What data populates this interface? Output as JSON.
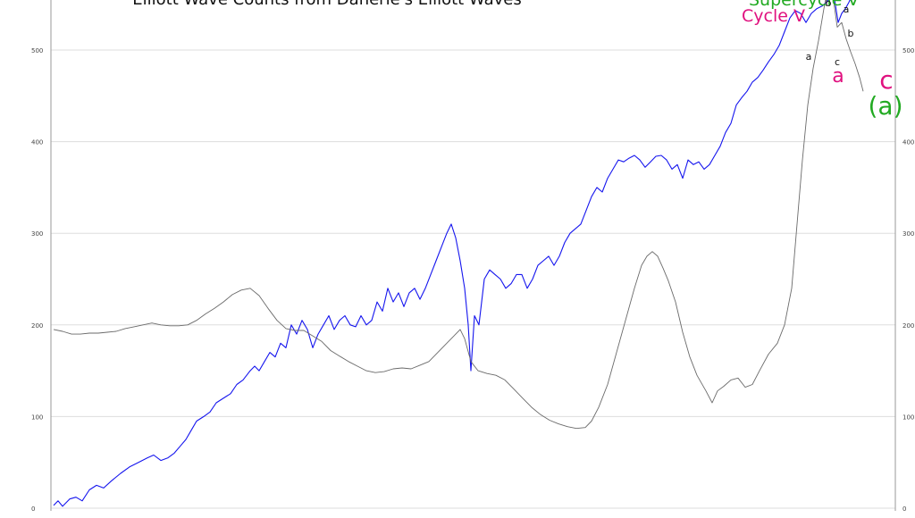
{
  "chart_data": {
    "type": "line",
    "title": "Elliott Wave Counts from Danerie's Elliott Waves",
    "ylim": [
      0,
      550
    ],
    "yticks": [
      0,
      100,
      200,
      300,
      400,
      500
    ],
    "grid": true,
    "colors": {
      "price": "#1515ee",
      "overlay": "#6a6a6a",
      "supercycle": "#22aa22",
      "cycle": "#e0117f",
      "grid": "#dddddd"
    },
    "series": [
      {
        "color_key": "price",
        "points": [
          [
            60,
            3
          ],
          [
            65,
            8
          ],
          [
            70,
            2
          ],
          [
            78,
            10
          ],
          [
            85,
            12
          ],
          [
            92,
            8
          ],
          [
            100,
            20
          ],
          [
            108,
            25
          ],
          [
            116,
            22
          ],
          [
            125,
            30
          ],
          [
            135,
            38
          ],
          [
            145,
            45
          ],
          [
            155,
            50
          ],
          [
            165,
            55
          ],
          [
            172,
            58
          ],
          [
            180,
            52
          ],
          [
            188,
            55
          ],
          [
            195,
            60
          ],
          [
            202,
            68
          ],
          [
            208,
            75
          ],
          [
            214,
            85
          ],
          [
            220,
            95
          ],
          [
            228,
            100
          ],
          [
            235,
            105
          ],
          [
            242,
            115
          ],
          [
            250,
            120
          ],
          [
            258,
            125
          ],
          [
            265,
            135
          ],
          [
            272,
            140
          ],
          [
            280,
            150
          ],
          [
            285,
            155
          ],
          [
            290,
            150
          ],
          [
            296,
            160
          ],
          [
            302,
            170
          ],
          [
            308,
            165
          ],
          [
            314,
            180
          ],
          [
            320,
            175
          ],
          [
            326,
            200
          ],
          [
            332,
            190
          ],
          [
            338,
            205
          ],
          [
            344,
            195
          ],
          [
            350,
            175
          ],
          [
            356,
            190
          ],
          [
            362,
            200
          ],
          [
            368,
            210
          ],
          [
            374,
            195
          ],
          [
            380,
            205
          ],
          [
            386,
            210
          ],
          [
            392,
            200
          ],
          [
            398,
            198
          ],
          [
            404,
            210
          ],
          [
            410,
            200
          ],
          [
            416,
            205
          ],
          [
            422,
            225
          ],
          [
            428,
            215
          ],
          [
            434,
            240
          ],
          [
            440,
            225
          ],
          [
            446,
            235
          ],
          [
            452,
            220
          ],
          [
            458,
            235
          ],
          [
            464,
            240
          ],
          [
            470,
            228
          ],
          [
            476,
            240
          ],
          [
            482,
            255
          ],
          [
            488,
            270
          ],
          [
            494,
            285
          ],
          [
            500,
            300
          ],
          [
            505,
            310
          ],
          [
            510,
            295
          ],
          [
            515,
            270
          ],
          [
            520,
            240
          ],
          [
            524,
            200
          ],
          [
            527,
            150
          ],
          [
            531,
            210
          ],
          [
            536,
            200
          ],
          [
            542,
            250
          ],
          [
            548,
            260
          ],
          [
            554,
            255
          ],
          [
            560,
            250
          ],
          [
            566,
            240
          ],
          [
            572,
            245
          ],
          [
            578,
            255
          ],
          [
            584,
            255
          ],
          [
            590,
            240
          ],
          [
            596,
            250
          ],
          [
            602,
            265
          ],
          [
            608,
            270
          ],
          [
            614,
            275
          ],
          [
            620,
            265
          ],
          [
            626,
            275
          ],
          [
            632,
            290
          ],
          [
            638,
            300
          ],
          [
            644,
            305
          ],
          [
            650,
            310
          ],
          [
            656,
            325
          ],
          [
            662,
            340
          ],
          [
            668,
            350
          ],
          [
            674,
            345
          ],
          [
            680,
            360
          ],
          [
            686,
            370
          ],
          [
            692,
            380
          ],
          [
            698,
            378
          ],
          [
            704,
            382
          ],
          [
            710,
            385
          ],
          [
            716,
            380
          ],
          [
            722,
            372
          ],
          [
            728,
            378
          ],
          [
            734,
            384
          ],
          [
            740,
            385
          ],
          [
            746,
            380
          ],
          [
            752,
            370
          ],
          [
            758,
            375
          ],
          [
            764,
            360
          ],
          [
            770,
            380
          ],
          [
            776,
            375
          ],
          [
            782,
            378
          ],
          [
            788,
            370
          ],
          [
            794,
            375
          ],
          [
            800,
            385
          ],
          [
            806,
            395
          ],
          [
            812,
            410
          ],
          [
            818,
            420
          ],
          [
            824,
            440
          ],
          [
            830,
            448
          ],
          [
            836,
            455
          ],
          [
            842,
            465
          ],
          [
            848,
            470
          ],
          [
            854,
            478
          ],
          [
            860,
            487
          ],
          [
            866,
            495
          ],
          [
            872,
            505
          ],
          [
            878,
            520
          ],
          [
            884,
            535
          ],
          [
            890,
            543
          ],
          [
            896,
            540
          ],
          [
            902,
            530
          ],
          [
            908,
            540
          ],
          [
            914,
            545
          ],
          [
            920,
            548
          ],
          [
            926,
            553
          ],
          [
            930,
            560
          ],
          [
            934,
            555
          ],
          [
            938,
            530
          ],
          [
            942,
            540
          ],
          [
            946,
            545
          ],
          [
            950,
            552
          ],
          [
            956,
            565
          ],
          [
            962,
            580
          ],
          [
            966,
            588
          ]
        ]
      },
      {
        "color_key": "overlay",
        "points": [
          [
            60,
            195
          ],
          [
            70,
            193
          ],
          [
            80,
            190
          ],
          [
            90,
            190
          ],
          [
            100,
            191
          ],
          [
            110,
            191
          ],
          [
            120,
            192
          ],
          [
            130,
            193
          ],
          [
            140,
            196
          ],
          [
            150,
            198
          ],
          [
            160,
            200
          ],
          [
            170,
            202
          ],
          [
            180,
            200
          ],
          [
            190,
            199
          ],
          [
            200,
            199
          ],
          [
            210,
            200
          ],
          [
            220,
            205
          ],
          [
            230,
            212
          ],
          [
            240,
            218
          ],
          [
            250,
            225
          ],
          [
            260,
            233
          ],
          [
            270,
            238
          ],
          [
            280,
            240
          ],
          [
            290,
            232
          ],
          [
            300,
            218
          ],
          [
            310,
            205
          ],
          [
            320,
            196
          ],
          [
            330,
            194
          ],
          [
            340,
            194
          ],
          [
            350,
            188
          ],
          [
            360,
            182
          ],
          [
            370,
            172
          ],
          [
            380,
            166
          ],
          [
            390,
            160
          ],
          [
            400,
            155
          ],
          [
            410,
            150
          ],
          [
            420,
            148
          ],
          [
            430,
            149
          ],
          [
            440,
            152
          ],
          [
            450,
            153
          ],
          [
            460,
            152
          ],
          [
            470,
            156
          ],
          [
            480,
            160
          ],
          [
            490,
            170
          ],
          [
            500,
            180
          ],
          [
            510,
            190
          ],
          [
            515,
            195
          ],
          [
            520,
            185
          ],
          [
            527,
            160
          ],
          [
            535,
            150
          ],
          [
            545,
            147
          ],
          [
            555,
            145
          ],
          [
            565,
            140
          ],
          [
            575,
            130
          ],
          [
            585,
            120
          ],
          [
            595,
            110
          ],
          [
            605,
            102
          ],
          [
            615,
            96
          ],
          [
            625,
            92
          ],
          [
            635,
            89
          ],
          [
            645,
            87
          ],
          [
            655,
            88
          ],
          [
            662,
            95
          ],
          [
            670,
            110
          ],
          [
            680,
            135
          ],
          [
            690,
            170
          ],
          [
            700,
            205
          ],
          [
            710,
            240
          ],
          [
            718,
            265
          ],
          [
            724,
            275
          ],
          [
            730,
            280
          ],
          [
            736,
            275
          ],
          [
            742,
            262
          ],
          [
            748,
            248
          ],
          [
            756,
            225
          ],
          [
            764,
            192
          ],
          [
            772,
            165
          ],
          [
            780,
            145
          ],
          [
            790,
            128
          ],
          [
            797,
            115
          ],
          [
            803,
            128
          ],
          [
            810,
            133
          ],
          [
            818,
            140
          ],
          [
            826,
            142
          ],
          [
            834,
            132
          ],
          [
            842,
            135
          ],
          [
            850,
            150
          ],
          [
            860,
            168
          ],
          [
            870,
            180
          ],
          [
            878,
            200
          ],
          [
            886,
            240
          ],
          [
            892,
            310
          ],
          [
            898,
            380
          ],
          [
            904,
            440
          ],
          [
            910,
            480
          ],
          [
            916,
            510
          ],
          [
            922,
            545
          ],
          [
            927,
            570
          ],
          [
            932,
            560
          ],
          [
            937,
            525
          ],
          [
            942,
            530
          ],
          [
            947,
            512
          ],
          [
            952,
            498
          ],
          [
            957,
            485
          ],
          [
            962,
            470
          ],
          [
            966,
            455
          ]
        ]
      }
    ],
    "labels": [
      {
        "text": "Supercycle V",
        "color_key": "supercycle",
        "size": 19
      },
      {
        "text": "Cycle V",
        "color_key": "cycle",
        "size": 19
      },
      {
        "text": "b",
        "color_key": "black",
        "size": 11
      },
      {
        "text": "a",
        "color_key": "black",
        "size": 11
      },
      {
        "text": "a",
        "color_key": "black",
        "size": 11
      },
      {
        "text": "b",
        "color_key": "black",
        "size": 11
      },
      {
        "text": "c",
        "color_key": "black",
        "size": 11
      },
      {
        "text": "a",
        "color_key": "cycle",
        "size": 22
      },
      {
        "text": "c",
        "color_key": "cycle",
        "size": 28
      },
      {
        "text": "(a)",
        "color_key": "supercycle",
        "size": 28
      }
    ]
  }
}
